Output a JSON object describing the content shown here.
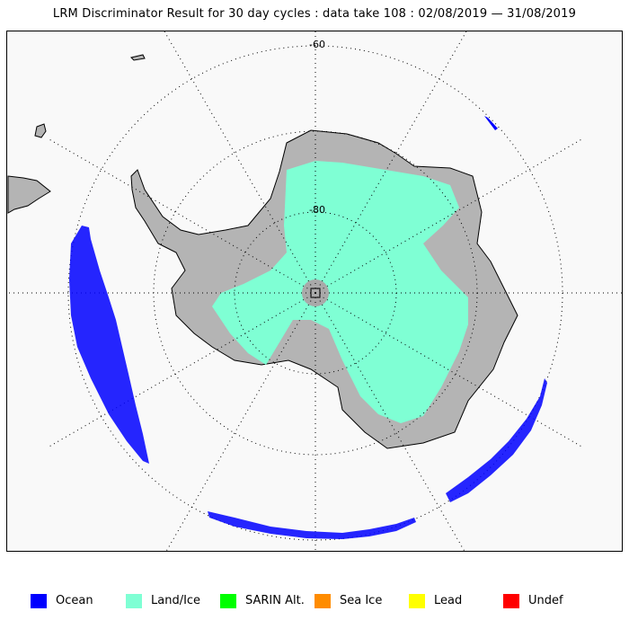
{
  "title": "LRM Discriminator Result for 30 day cycles : data take 108 : 02/08/2019 — 31/08/2019",
  "map": {
    "projection": "south-polar-stereographic",
    "graticule": "dotted",
    "latitude_labels": [
      "-60",
      "-80"
    ],
    "land_color": "#b4b4b4",
    "background_color": "#f9f9f9"
  },
  "legend": [
    {
      "label": "Ocean",
      "color": "#0000ff"
    },
    {
      "label": "Land/Ice",
      "color": "#7fffd4"
    },
    {
      "label": "SARIN Alt.",
      "color": "#00ff00"
    },
    {
      "label": "Sea Ice",
      "color": "#ff8c00"
    },
    {
      "label": "Lead",
      "color": "#ffff00"
    },
    {
      "label": "Undef",
      "color": "#ff0000"
    }
  ]
}
